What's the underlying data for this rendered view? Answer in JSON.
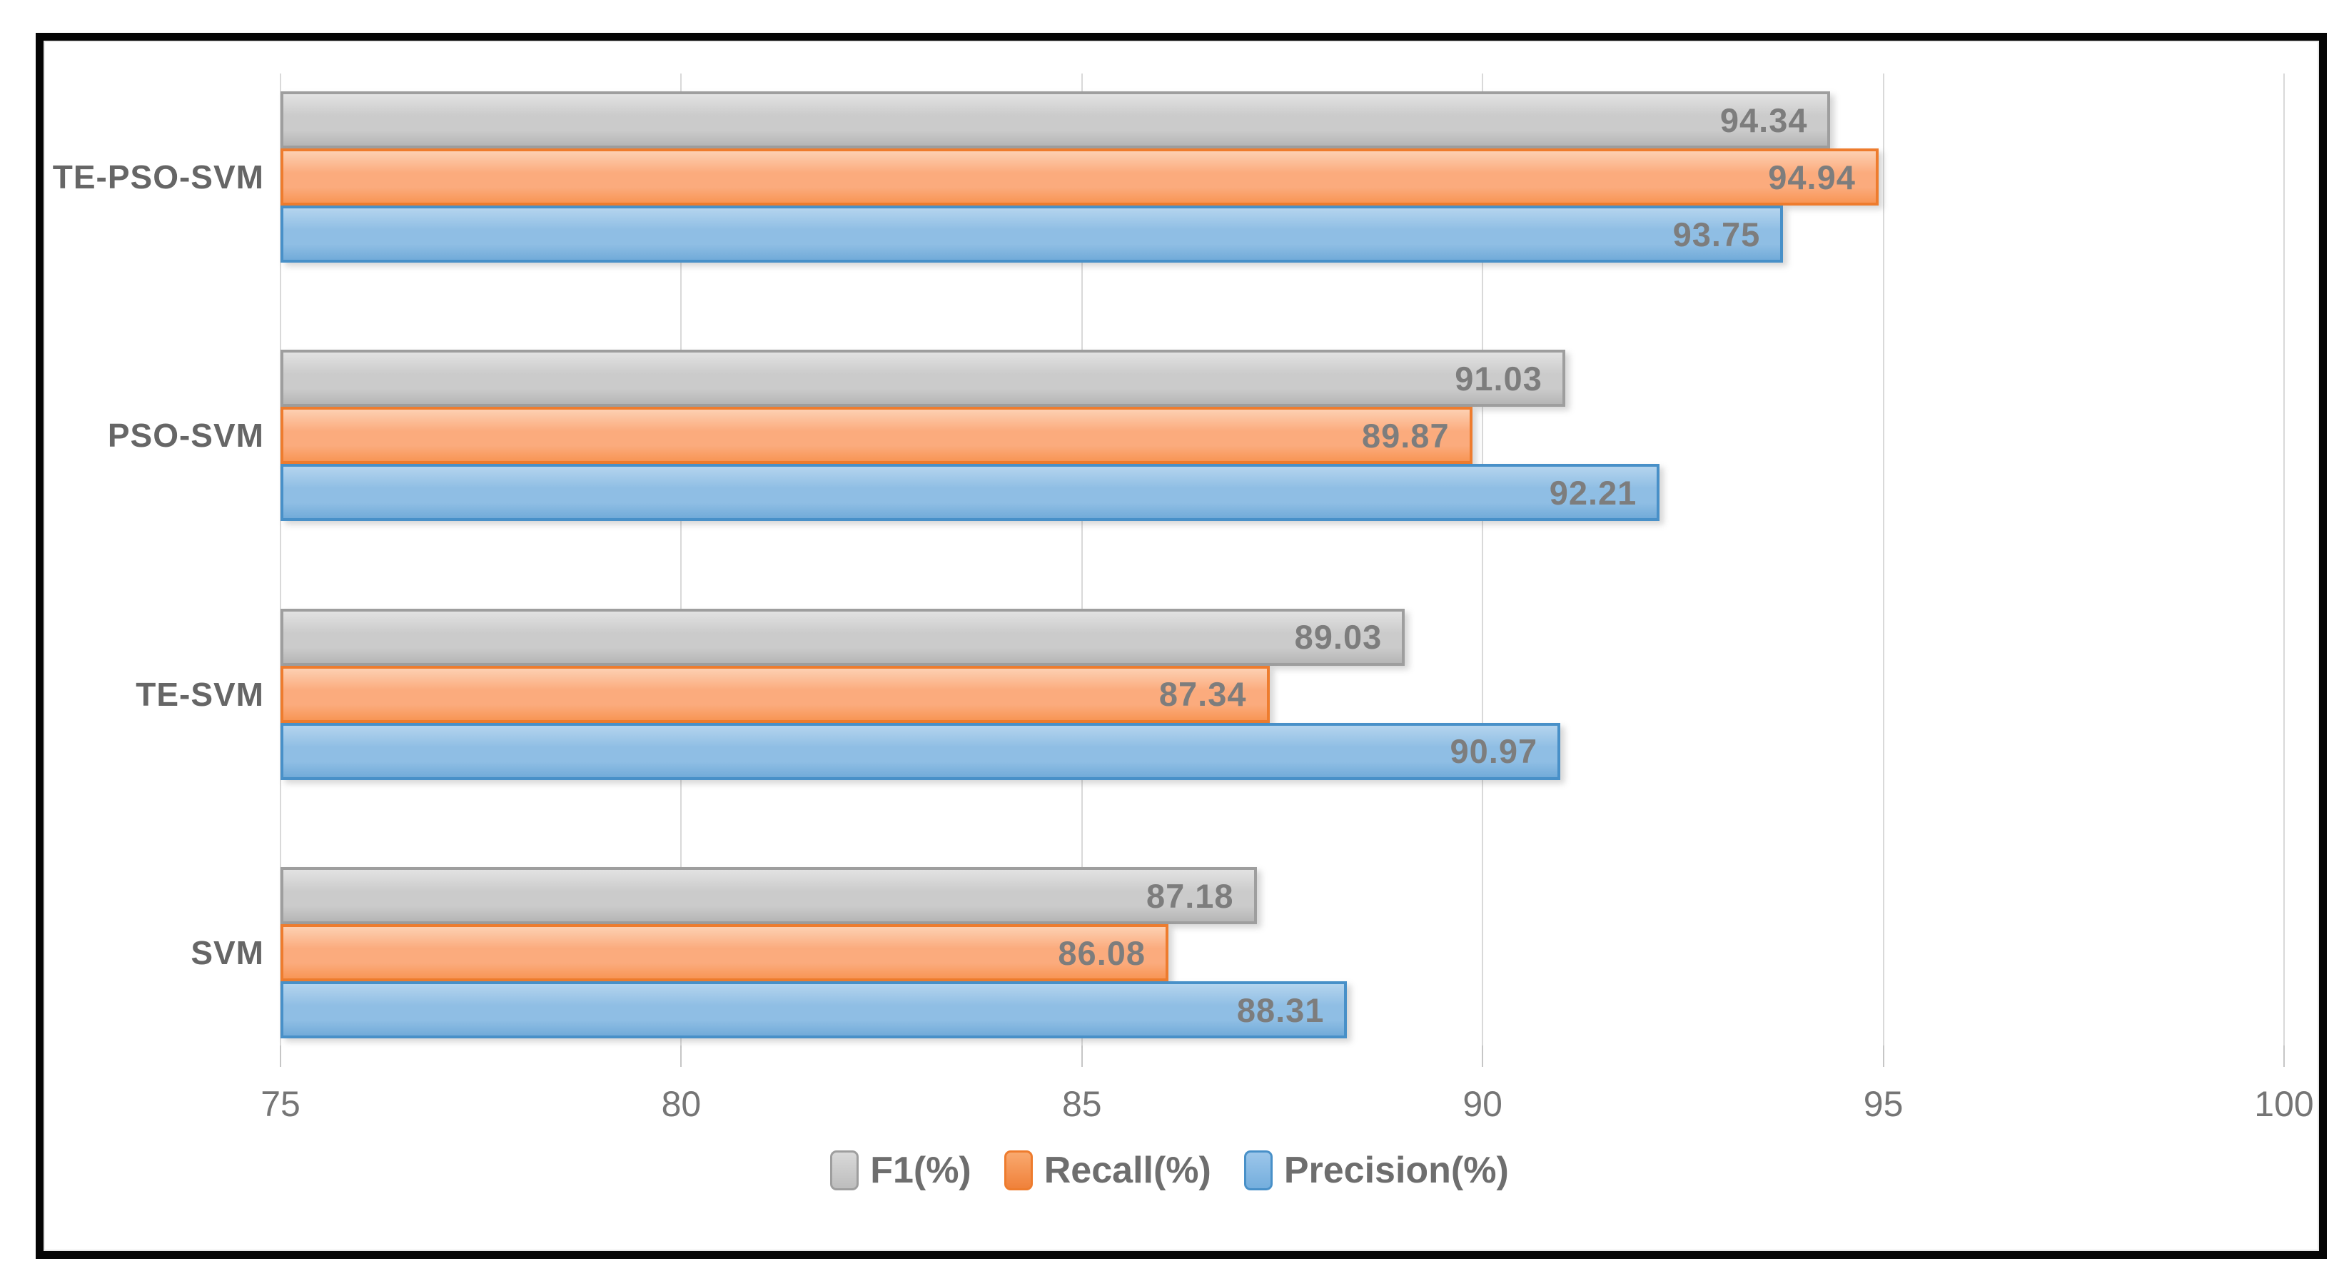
{
  "chart_data": {
    "type": "bar",
    "orientation": "horizontal",
    "title": "",
    "categories": [
      "TE-PSO-SVM",
      "PSO-SVM",
      "TE-SVM",
      "SVM"
    ],
    "series": [
      {
        "name": "F1(%)",
        "values": [
          94.34,
          91.03,
          89.03,
          87.18
        ],
        "fill": "#cbcbcb",
        "fill_light": "#e2e2e2",
        "fill_dark": "#b6b6b6",
        "border": "#9e9e9e",
        "swatch_top": "#d9d9d9",
        "swatch_bottom": "#bdbdbd"
      },
      {
        "name": "Recall(%)",
        "values": [
          94.94,
          89.87,
          87.34,
          86.08
        ],
        "fill": "#fbab7d",
        "fill_light": "#fdd0b2",
        "fill_dark": "#f89655",
        "border": "#ee7c2e",
        "swatch_top": "#f9a96f",
        "swatch_bottom": "#f0813a"
      },
      {
        "name": "Precision(%)",
        "values": [
          93.75,
          92.21,
          90.97,
          88.31
        ],
        "fill": "#8fbee4",
        "fill_light": "#b4d4ee",
        "fill_dark": "#72abd9",
        "border": "#4890c8",
        "swatch_top": "#9cc6ea",
        "swatch_bottom": "#74aedd"
      }
    ],
    "xlim": [
      75,
      100
    ],
    "xticks": [
      75,
      80,
      85,
      90,
      95,
      100
    ],
    "grid": true,
    "legend_position": "bottom",
    "value_labels": "inside-end",
    "value_label_decimals": 2
  },
  "styles": {
    "background": "#ffffff",
    "frame_color": "#050505",
    "gridline_color": "#d9d9d9",
    "tick_color": "#c6c6c6",
    "axis_label_color": "#757575",
    "category_label_color": "#666666",
    "value_label_color": "#7d7d7d",
    "legend_text_color": "#6e6e6e"
  }
}
